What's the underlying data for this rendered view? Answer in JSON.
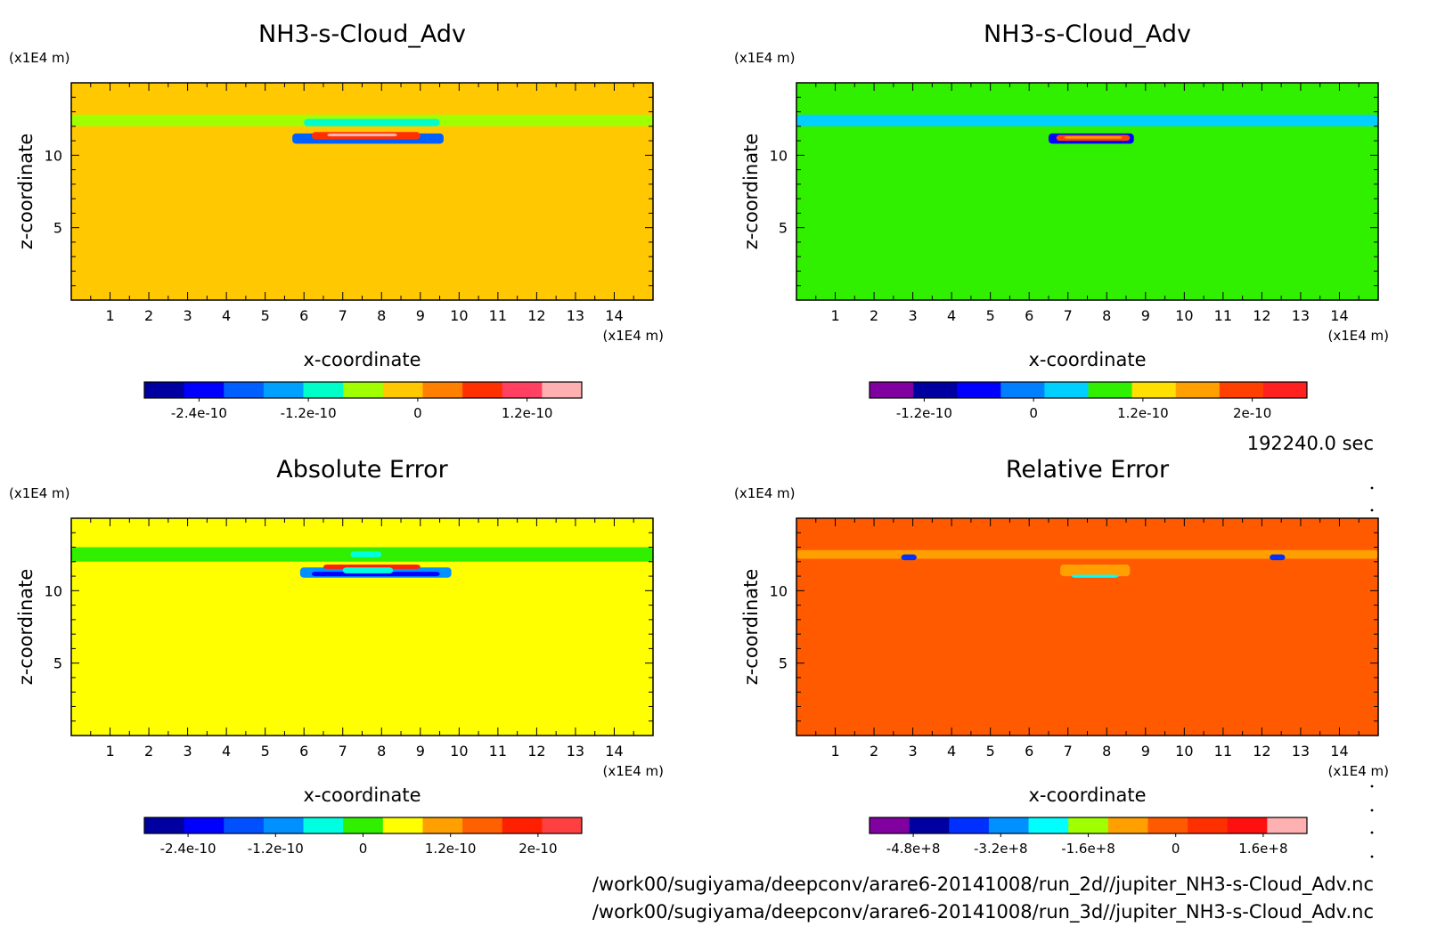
{
  "time_label": "192240.0 sec",
  "file_paths": [
    "/work00/sugiyama/deepconv/arare6-20141008/run_2d//jupiter_NH3-s-Cloud_Adv.nc",
    "/work00/sugiyama/deepconv/arare6-20141008/run_3d//jupiter_NH3-s-Cloud_Adv.nc"
  ],
  "chart_data": [
    {
      "type": "heatmap",
      "title": "NH3-s-Cloud_Adv",
      "xlabel": "x-coordinate",
      "ylabel": "z-coordinate",
      "x_unit": "(x1E4 m)",
      "y_unit": "(x1E4 m)",
      "xlim": [
        0,
        15
      ],
      "ylim": [
        0,
        15
      ],
      "xticks": [
        1,
        2,
        3,
        4,
        5,
        6,
        7,
        8,
        9,
        10,
        11,
        12,
        13,
        14
      ],
      "yticks": [
        5,
        10
      ],
      "background_color": "#ffc800",
      "colorbar": {
        "colors": [
          "#0000a0",
          "#0000ff",
          "#0060ff",
          "#00a0ff",
          "#00ffc8",
          "#a0ff00",
          "#ffc800",
          "#ff8000",
          "#ff3000",
          "#ff4060",
          "#ffb0b0"
        ],
        "tick_labels": [
          "-2.4e-10",
          "-1.2e-10",
          "0",
          "1.2e-10"
        ],
        "tick_values": [
          -2.4e-10,
          -1.2e-10,
          0,
          1.2e-10
        ]
      },
      "features": [
        {
          "kind": "band",
          "x": [
            0,
            15
          ],
          "z": [
            12,
            12.8
          ],
          "color": "#a0ff00"
        },
        {
          "kind": "band",
          "x": [
            6,
            9.5
          ],
          "z": [
            12,
            12.5
          ],
          "color": "#00ffc8"
        },
        {
          "kind": "band",
          "x": [
            5.7,
            9.6
          ],
          "z": [
            10.8,
            11.5
          ],
          "color": "#0060ff"
        },
        {
          "kind": "band",
          "x": [
            6.2,
            9
          ],
          "z": [
            11.1,
            11.6
          ],
          "color": "#ff3000"
        },
        {
          "kind": "band",
          "x": [
            6.6,
            8.4
          ],
          "z": [
            11.3,
            11.5
          ],
          "color": "#ffb0b0"
        }
      ]
    },
    {
      "type": "heatmap",
      "title": "NH3-s-Cloud_Adv",
      "xlabel": "x-coordinate",
      "ylabel": "z-coordinate",
      "x_unit": "(x1E4 m)",
      "y_unit": "(x1E4 m)",
      "xlim": [
        0,
        15
      ],
      "ylim": [
        0,
        15
      ],
      "xticks": [
        1,
        2,
        3,
        4,
        5,
        6,
        7,
        8,
        9,
        10,
        11,
        12,
        13,
        14
      ],
      "yticks": [
        5,
        10
      ],
      "background_color": "#30f000",
      "colorbar": {
        "colors": [
          "#8000a0",
          "#0000a0",
          "#0000ff",
          "#0080ff",
          "#00d0ff",
          "#30f000",
          "#ffe000",
          "#ffa000",
          "#ff4000",
          "#ff2020"
        ],
        "tick_labels": [
          "-1.2e-10",
          "0",
          "1.2e-10",
          "2e-10"
        ],
        "tick_values": [
          -1.2e-10,
          0,
          1.2e-10,
          2e-10
        ]
      },
      "features": [
        {
          "kind": "band",
          "x": [
            0,
            15
          ],
          "z": [
            12,
            12.8
          ],
          "color": "#00d0ff"
        },
        {
          "kind": "band",
          "x": [
            6.5,
            8.7
          ],
          "z": [
            10.8,
            11.5
          ],
          "color": "#0000ff"
        },
        {
          "kind": "band",
          "x": [
            6.7,
            8.6
          ],
          "z": [
            11.0,
            11.4
          ],
          "color": "#ff4000"
        },
        {
          "kind": "band",
          "x": [
            6.9,
            8.4
          ],
          "z": [
            11.15,
            11.3
          ],
          "color": "#ffa000"
        }
      ]
    },
    {
      "type": "heatmap",
      "title": "Absolute Error",
      "xlabel": "x-coordinate",
      "ylabel": "z-coordinate",
      "x_unit": "(x1E4 m)",
      "y_unit": "(x1E4 m)",
      "xlim": [
        0,
        15
      ],
      "ylim": [
        0,
        15
      ],
      "xticks": [
        1,
        2,
        3,
        4,
        5,
        6,
        7,
        8,
        9,
        10,
        11,
        12,
        13,
        14
      ],
      "yticks": [
        5,
        10
      ],
      "background_color": "#ffff00",
      "colorbar": {
        "colors": [
          "#0000a0",
          "#0000ff",
          "#0050ff",
          "#0090ff",
          "#00ffe0",
          "#30f000",
          "#ffff00",
          "#ffa000",
          "#ff6000",
          "#ff2000",
          "#ff4040"
        ],
        "tick_labels": [
          "-2.4e-10",
          "-1.2e-10",
          "0",
          "1.2e-10",
          "2e-10"
        ],
        "tick_values": [
          -2.4e-10,
          -1.2e-10,
          0,
          1.2e-10,
          2e-10
        ]
      },
      "features": [
        {
          "kind": "band",
          "x": [
            0,
            15
          ],
          "z": [
            12,
            13
          ],
          "color": "#30f000"
        },
        {
          "kind": "band",
          "x": [
            5.9,
            9.8
          ],
          "z": [
            10.9,
            11.6
          ],
          "color": "#0090ff"
        },
        {
          "kind": "band",
          "x": [
            6.2,
            9.5
          ],
          "z": [
            11.0,
            11.3
          ],
          "color": "#0000ff"
        },
        {
          "kind": "band",
          "x": [
            6.5,
            9
          ],
          "z": [
            11.5,
            11.8
          ],
          "color": "#ff2000"
        },
        {
          "kind": "band",
          "x": [
            7,
            8.3
          ],
          "z": [
            11.2,
            11.6
          ],
          "color": "#00ffe0"
        },
        {
          "kind": "band",
          "x": [
            7.2,
            8
          ],
          "z": [
            12.3,
            12.7
          ],
          "color": "#00ffe0"
        }
      ]
    },
    {
      "type": "heatmap",
      "title": "Relative Error",
      "xlabel": "x-coordinate",
      "ylabel": "z-coordinate",
      "x_unit": "(x1E4 m)",
      "y_unit": "(x1E4 m)",
      "xlim": [
        0,
        15
      ],
      "ylim": [
        0,
        15
      ],
      "xticks": [
        1,
        2,
        3,
        4,
        5,
        6,
        7,
        8,
        9,
        10,
        11,
        12,
        13,
        14
      ],
      "yticks": [
        5,
        10
      ],
      "background_color": "#ff5a00",
      "colorbar": {
        "colors": [
          "#8000a0",
          "#0000a0",
          "#0030ff",
          "#0090ff",
          "#00ffff",
          "#a0ff00",
          "#ffa000",
          "#ff5a00",
          "#ff3000",
          "#ff1010",
          "#ffb0b0"
        ],
        "tick_labels": [
          "-4.8e+8",
          "-3.2e+8",
          "-1.6e+8",
          "0",
          "1.6e+8"
        ],
        "tick_values": [
          -480000000.0,
          -320000000.0,
          -160000000.0,
          0,
          160000000.0
        ]
      },
      "features": [
        {
          "kind": "band",
          "x": [
            0,
            15
          ],
          "z": [
            12.2,
            12.8
          ],
          "color": "#ffa000"
        },
        {
          "kind": "band",
          "x": [
            6.8,
            8.6
          ],
          "z": [
            11.0,
            11.8
          ],
          "color": "#ffa000"
        },
        {
          "kind": "band",
          "x": [
            7.1,
            8.3
          ],
          "z": [
            10.9,
            11.1
          ],
          "color": "#00ffff"
        },
        {
          "kind": "band",
          "x": [
            2.7,
            3.1
          ],
          "z": [
            12.1,
            12.5
          ],
          "color": "#0030ff"
        },
        {
          "kind": "band",
          "x": [
            12.2,
            12.6
          ],
          "z": [
            12.1,
            12.5
          ],
          "color": "#0030ff"
        }
      ]
    }
  ]
}
